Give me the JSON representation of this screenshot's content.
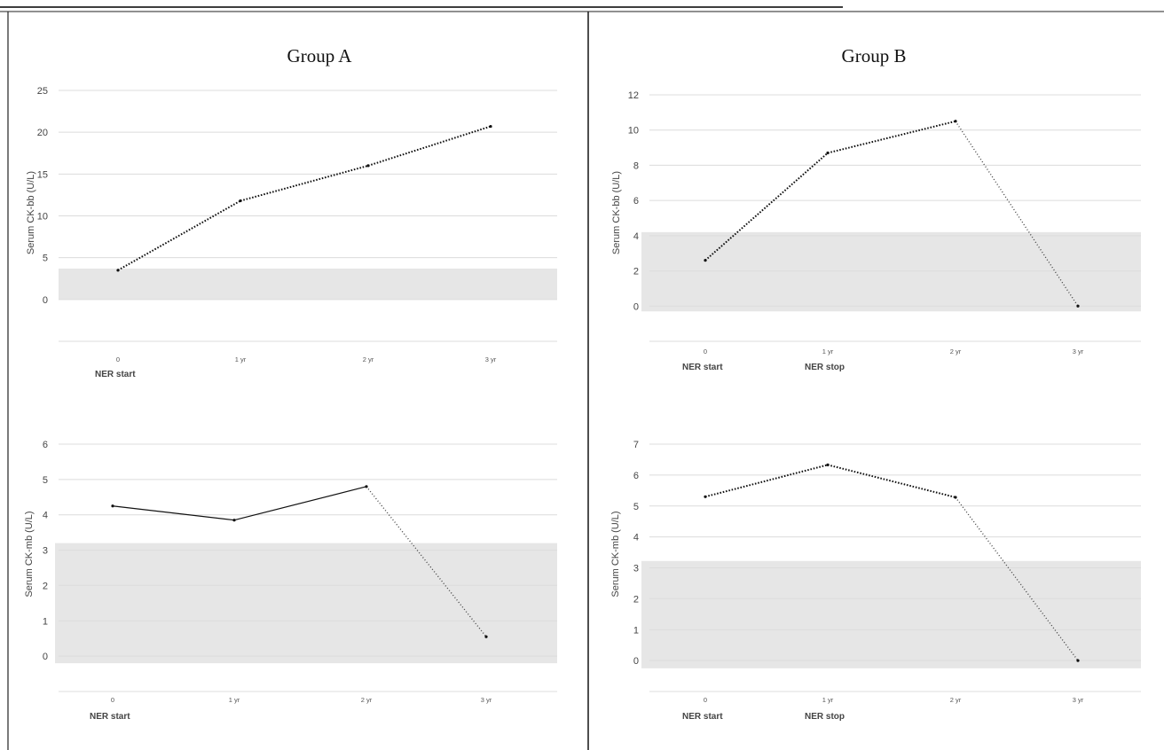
{
  "chart_data": [
    {
      "type": "line",
      "panel": "top-left",
      "title": "Group A",
      "ylabel": "Serum CK-bb (U/L)",
      "ylim": [
        -5,
        25
      ],
      "yticks": [
        "25",
        "20",
        "15",
        "10",
        "5",
        "0"
      ],
      "categories": [
        "0",
        "1 yr",
        "2 yr",
        "3 yr"
      ],
      "values": [
        3.5,
        11.8,
        16,
        20.7
      ],
      "segment_styles": [
        "dense",
        "dense",
        "dense"
      ],
      "reference_range": [
        0,
        3.7
      ],
      "annotations": [
        {
          "text": "NER start",
          "under_category": 0
        }
      ]
    },
    {
      "type": "line",
      "panel": "top-right",
      "title": "Group B",
      "ylabel": "Serum CK-bb (U/L)",
      "ylim": [
        -2,
        12
      ],
      "yticks": [
        "12",
        "10",
        "8",
        "6",
        "4",
        "2",
        "0"
      ],
      "categories": [
        "0",
        "1 yr",
        "2 yr",
        "3 yr"
      ],
      "values": [
        2.6,
        8.7,
        10.5,
        0
      ],
      "segment_styles": [
        "dense",
        "dense",
        "sparse"
      ],
      "reference_range": [
        -0.3,
        4.2
      ],
      "annotations": [
        {
          "text": "NER start",
          "under_category": 0
        },
        {
          "text": "NER stop",
          "under_category": 1
        }
      ]
    },
    {
      "type": "line",
      "panel": "bottom-left",
      "title": "",
      "ylabel": "Serum CK-mb (U/L)",
      "ylim": [
        -1,
        6
      ],
      "yticks": [
        "6",
        "5",
        "4",
        "3",
        "2",
        "1",
        "0"
      ],
      "categories": [
        "0",
        "1 yr",
        "2 yr",
        "3 yr"
      ],
      "values": [
        4.25,
        3.85,
        4.8,
        0.55
      ],
      "segment_styles": [
        "solid",
        "solid",
        "sparse"
      ],
      "reference_range": [
        -0.2,
        3.2
      ],
      "annotations": [
        {
          "text": "NER start",
          "under_category": 0
        }
      ]
    },
    {
      "type": "line",
      "panel": "bottom-right",
      "title": "",
      "ylabel": "Serum CK-mb (U/L)",
      "ylim": [
        -1,
        7
      ],
      "yticks": [
        "7",
        "6",
        "5",
        "4",
        "3",
        "2",
        "1",
        "0"
      ],
      "categories": [
        "0",
        "1 yr",
        "2 yr",
        "3 yr"
      ],
      "values": [
        5.3,
        6.33,
        5.28,
        0
      ],
      "segment_styles": [
        "dense",
        "dense",
        "sparse"
      ],
      "reference_range": [
        -0.25,
        3.22
      ],
      "annotations": [
        {
          "text": "NER start",
          "under_category": 0
        },
        {
          "text": "NER stop",
          "under_category": 1
        }
      ]
    }
  ]
}
